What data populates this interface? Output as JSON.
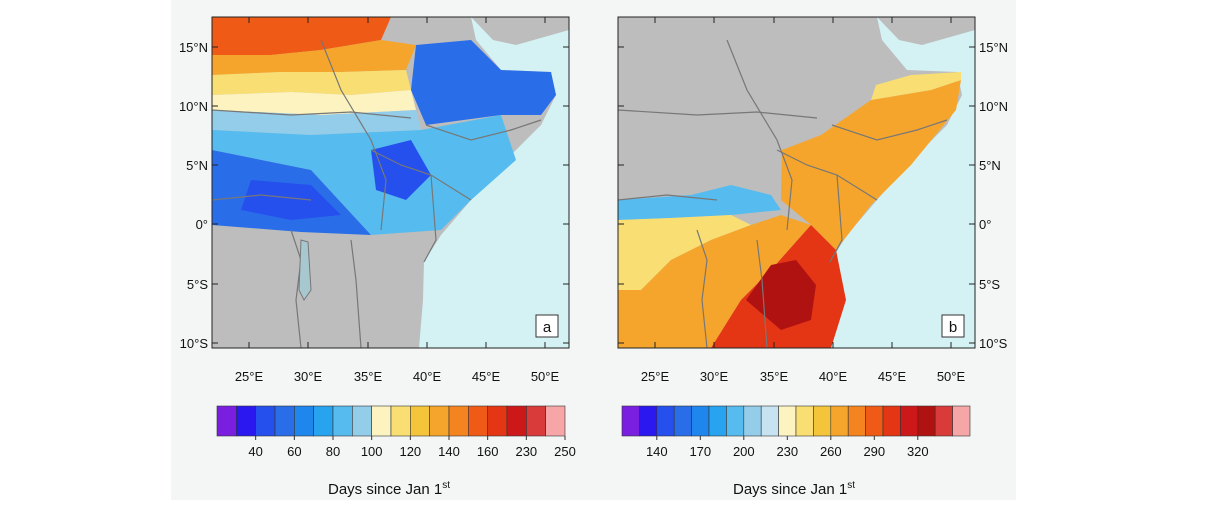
{
  "panels": [
    {
      "id": "a",
      "tag": "a",
      "lat_ticks": [
        "15°N",
        "10°N",
        "5°N",
        "0°",
        "5°S",
        "10°S"
      ],
      "lon_ticks": [
        "25°E",
        "30°E",
        "35°E",
        "40°E",
        "45°E",
        "50°E"
      ],
      "lat_label_side": "left",
      "colorbar": {
        "colors": [
          "#7a1fe0",
          "#2b18f0",
          "#2550ee",
          "#2a6de8",
          "#1f86ee",
          "#27a3f0",
          "#56bcef",
          "#93cdea",
          "#fdf3c0",
          "#f9df73",
          "#f4c43b",
          "#f6a52c",
          "#f4841f",
          "#f05a17",
          "#e43515",
          "#cc1818",
          "#d93a3a",
          "#f7a6a8"
        ],
        "labels": [
          "40",
          "60",
          "80",
          "100",
          "120",
          "140",
          "160",
          "230",
          "250"
        ],
        "title": "Days since Jan 1",
        "title_sup": "st"
      }
    },
    {
      "id": "b",
      "tag": "b",
      "lat_ticks": [
        "15°N",
        "10°N",
        "5°N",
        "0°",
        "5°S",
        "10°S"
      ],
      "lon_ticks": [
        "25°E",
        "30°E",
        "35°E",
        "40°E",
        "45°E",
        "50°E"
      ],
      "lat_label_side": "right",
      "colorbar": {
        "colors": [
          "#7a1fe0",
          "#2b18f0",
          "#2550ee",
          "#2a6de8",
          "#1f86ee",
          "#27a3f0",
          "#56bcef",
          "#93cdea",
          "#c7e3f2",
          "#fdf3c0",
          "#f9df73",
          "#f4c43b",
          "#f6a52c",
          "#f4841f",
          "#f05a17",
          "#e43515",
          "#cc1818",
          "#b01212",
          "#d93a3a",
          "#f7a6a8"
        ],
        "labels": [
          "140",
          "170",
          "200",
          "230",
          "260",
          "290",
          "320"
        ],
        "title": "Days since Jan 1",
        "title_sup": "st"
      }
    }
  ]
}
